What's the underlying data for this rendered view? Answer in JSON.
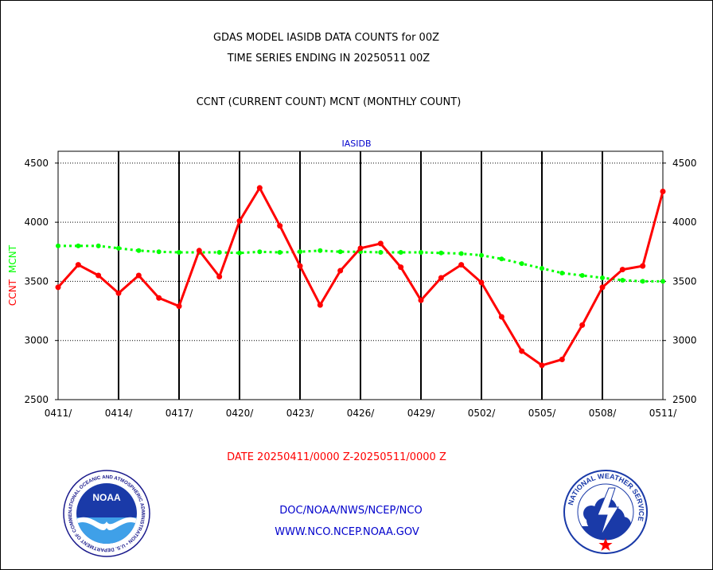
{
  "header": {
    "title_line1": "GDAS MODEL IASIDB DATA COUNTS for 00Z",
    "title_line2": "TIME SERIES ENDING IN 20250511 00Z",
    "subtitle": "CCNT (CURRENT COUNT) MCNT (MONTHLY COUNT)"
  },
  "footer": {
    "date_range": "DATE 20250411/0000 Z-20250511/0000 Z",
    "org_path": "DOC/NOAA/NWS/NCEP/NCO",
    "website": "WWW.NCO.NCEP.NOAA.GOV"
  },
  "logos": {
    "noaa_wordmark": "NOAA",
    "noaa_ring_text": "NATIONAL OCEANIC AND ATMOSPHERIC ADMINISTRATION • U.S. DEPARTMENT OF COMMERCE •",
    "nws_ring_text": "NATIONAL WEATHER SERVICE"
  },
  "chart_data": {
    "type": "line",
    "title": "IASIDB",
    "ylabel_parts": [
      {
        "text": "CCNT",
        "color": "#ff0000"
      },
      {
        "text": "MCNT",
        "color": "#00ff00"
      }
    ],
    "ylim": [
      2500,
      4600
    ],
    "yticks": [
      2500,
      3000,
      3500,
      4000,
      4500
    ],
    "ytick_labels": [
      "2500",
      "3000",
      "3500",
      "4000",
      "4500"
    ],
    "xtick_labels": [
      "0411/",
      "0414/",
      "0417/",
      "0420/",
      "0423/",
      "0426/",
      "0429/",
      "0502/",
      "0505/",
      "0508/",
      "0511/"
    ],
    "grid": true,
    "x": [
      "0411",
      "0412",
      "0413",
      "0414",
      "0415",
      "0416",
      "0417",
      "0418",
      "0419",
      "0420",
      "0421",
      "0422",
      "0423",
      "0424",
      "0425",
      "0426",
      "0427",
      "0428",
      "0429",
      "0430",
      "0501",
      "0502",
      "0503",
      "0504",
      "0505",
      "0506",
      "0507",
      "0508",
      "0509",
      "0510",
      "0511"
    ],
    "series": [
      {
        "name": "CCNT",
        "color": "#ff0000",
        "style": "solid",
        "values": [
          3450,
          3640,
          3550,
          3400,
          3550,
          3360,
          3290,
          3760,
          3540,
          4010,
          4290,
          3970,
          3630,
          3300,
          3590,
          3780,
          3820,
          3620,
          3340,
          3530,
          3640,
          3490,
          3200,
          2910,
          2790,
          2840,
          3130,
          3450,
          3600,
          3630,
          4260
        ]
      },
      {
        "name": "MCNT",
        "color": "#00ff00",
        "style": "dotted",
        "values": [
          3800,
          3800,
          3800,
          3780,
          3760,
          3750,
          3745,
          3745,
          3745,
          3740,
          3750,
          3745,
          3750,
          3760,
          3750,
          3750,
          3745,
          3745,
          3745,
          3740,
          3735,
          3720,
          3690,
          3650,
          3610,
          3570,
          3550,
          3530,
          3510,
          3500,
          3500
        ]
      }
    ]
  }
}
